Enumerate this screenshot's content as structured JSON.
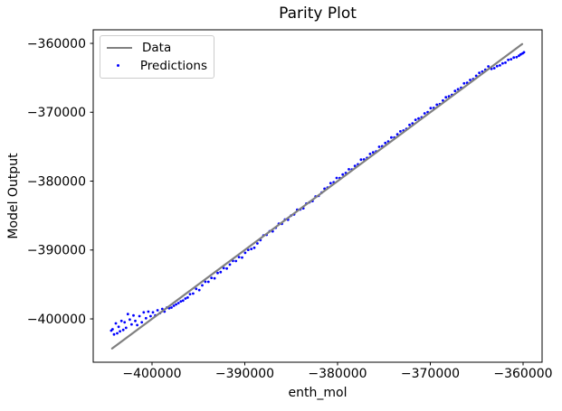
{
  "figure": {
    "title": "Parity Plot",
    "xlabel": "enth_mol",
    "ylabel": "Model Output"
  },
  "legend": {
    "items": [
      {
        "label": "Data",
        "type": "line",
        "color": "#808080"
      },
      {
        "label": "Predictions",
        "type": "marker",
        "color": "#0000ff"
      }
    ]
  },
  "chart_data": {
    "type": "scatter",
    "title": "Parity Plot",
    "xlabel": "enth_mol",
    "ylabel": "Model Output",
    "grid": false,
    "legend_position": "upper left",
    "xlim": [
      -406340,
      -357950
    ],
    "ylim": [
      -406290,
      -358030
    ],
    "x_ticks": [
      -400000,
      -390000,
      -380000,
      -370000,
      -360000
    ],
    "x_tick_labels": [
      "−400000",
      "−390000",
      "−380000",
      "−370000",
      "−360000"
    ],
    "y_ticks": [
      -360000,
      -370000,
      -380000,
      -390000,
      -400000
    ],
    "y_tick_labels": [
      "−360000",
      "−370000",
      "−380000",
      "−390000",
      "−400000"
    ],
    "series": [
      {
        "name": "Data",
        "type": "line",
        "color": "#808080",
        "line_width": 2.2,
        "points": [
          [
            -404300,
            -404300
          ],
          [
            -360100,
            -360100
          ]
        ]
      },
      {
        "name": "Predictions",
        "type": "scatter",
        "color": "#0000ff",
        "marker_size": 1.4,
        "points": [
          [
            -404400,
            -401700
          ],
          [
            -404250,
            -401500
          ],
          [
            -404100,
            -402250
          ],
          [
            -403900,
            -400650
          ],
          [
            -403750,
            -402100
          ],
          [
            -403600,
            -401150
          ],
          [
            -403450,
            -401800
          ],
          [
            -403300,
            -400300
          ],
          [
            -403100,
            -401600
          ],
          [
            -402950,
            -400500
          ],
          [
            -402800,
            -401300
          ],
          [
            -402600,
            -399300
          ],
          [
            -402400,
            -400100
          ],
          [
            -402200,
            -400800
          ],
          [
            -402000,
            -399500
          ],
          [
            -401800,
            -400300
          ],
          [
            -401600,
            -400900
          ],
          [
            -401350,
            -399600
          ],
          [
            -401100,
            -400500
          ],
          [
            -400900,
            -399050
          ],
          [
            -400650,
            -399900
          ],
          [
            -400400,
            -398950
          ],
          [
            -400150,
            -399600
          ],
          [
            -399900,
            -399050
          ],
          [
            -399650,
            -399500
          ],
          [
            -399400,
            -398750
          ],
          [
            -399150,
            -399150
          ],
          [
            -398900,
            -398550
          ],
          [
            -398650,
            -398950
          ],
          [
            -398400,
            -398350
          ],
          [
            -398150,
            -398450
          ],
          [
            -397900,
            -398350
          ],
          [
            -397650,
            -398100
          ],
          [
            -397400,
            -397900
          ],
          [
            -397150,
            -397700
          ],
          [
            -396900,
            -397450
          ],
          [
            -396650,
            -397350
          ],
          [
            -396400,
            -397050
          ],
          [
            -396150,
            -396900
          ],
          [
            -395900,
            -396400
          ],
          [
            -395570,
            -396320
          ],
          [
            -395240,
            -395640
          ],
          [
            -394910,
            -395810
          ],
          [
            -394580,
            -395130
          ],
          [
            -394250,
            -394600
          ],
          [
            -393920,
            -394620
          ],
          [
            -393590,
            -394040
          ],
          [
            -393260,
            -394110
          ],
          [
            -392930,
            -393330
          ],
          [
            -392600,
            -393200
          ],
          [
            -392270,
            -392620
          ],
          [
            -391940,
            -392690
          ],
          [
            -391610,
            -392110
          ],
          [
            -391280,
            -391580
          ],
          [
            -390950,
            -391600
          ],
          [
            -390620,
            -391020
          ],
          [
            -390290,
            -391090
          ],
          [
            -389960,
            -390410
          ],
          [
            -389630,
            -389980
          ],
          [
            -389300,
            -389850
          ],
          [
            -388970,
            -389670
          ],
          [
            -388640,
            -389040
          ],
          [
            -388310,
            -388560
          ],
          [
            -387980,
            -387880
          ],
          [
            -387650,
            -387800
          ],
          [
            -387320,
            -387270
          ],
          [
            -386990,
            -387290
          ],
          [
            -386660,
            -386760
          ],
          [
            -386330,
            -386180
          ],
          [
            -386000,
            -386200
          ],
          [
            -385670,
            -385570
          ],
          [
            -385340,
            -385590
          ],
          [
            -385010,
            -385010
          ],
          [
            -384680,
            -384830
          ],
          [
            -384350,
            -384150
          ],
          [
            -384020,
            -384120
          ],
          [
            -383690,
            -383940
          ],
          [
            -383360,
            -383260
          ],
          [
            -383030,
            -383080
          ],
          [
            -382700,
            -382900
          ],
          [
            -382370,
            -382220
          ],
          [
            -382040,
            -382140
          ],
          [
            -381710,
            -381660
          ],
          [
            -381400,
            -381100
          ],
          [
            -381073,
            -380923
          ],
          [
            -380746,
            -380296
          ],
          [
            -380419,
            -380169
          ],
          [
            -380092,
            -379542
          ],
          [
            -379765,
            -379565
          ],
          [
            -379438,
            -379038
          ],
          [
            -379111,
            -378811
          ],
          [
            -378784,
            -378284
          ],
          [
            -378457,
            -378307
          ],
          [
            -378130,
            -377780
          ],
          [
            -377803,
            -377553
          ],
          [
            -377476,
            -376876
          ],
          [
            -377149,
            -376849
          ],
          [
            -376822,
            -376622
          ],
          [
            -376495,
            -376045
          ],
          [
            -376168,
            -375818
          ],
          [
            -375841,
            -375691
          ],
          [
            -375514,
            -375014
          ],
          [
            -375187,
            -374937
          ],
          [
            -374860,
            -374460
          ],
          [
            -374533,
            -374233
          ],
          [
            -374206,
            -373656
          ],
          [
            -373879,
            -373679
          ],
          [
            -373552,
            -373202
          ],
          [
            -373225,
            -372775
          ],
          [
            -372898,
            -372648
          ],
          [
            -372571,
            -372421
          ],
          [
            -372244,
            -371844
          ],
          [
            -371917,
            -371617
          ],
          [
            -371590,
            -371090
          ],
          [
            -371263,
            -370913
          ],
          [
            -370936,
            -370736
          ],
          [
            -370609,
            -370159
          ],
          [
            -370282,
            -369982
          ],
          [
            -369955,
            -369405
          ],
          [
            -369628,
            -369378
          ],
          [
            -369301,
            -368901
          ],
          [
            -368974,
            -368824
          ],
          [
            -368647,
            -368297
          ],
          [
            -368320,
            -367820
          ],
          [
            -367993,
            -367693
          ],
          [
            -367666,
            -367466
          ],
          [
            -367339,
            -366889
          ],
          [
            -367012,
            -366662
          ],
          [
            -366685,
            -366435
          ],
          [
            -366358,
            -365808
          ],
          [
            -366031,
            -365731
          ],
          [
            -365704,
            -365304
          ],
          [
            -365377,
            -365177
          ],
          [
            -365050,
            -364700
          ],
          [
            -364723,
            -364273
          ],
          [
            -364396,
            -364096
          ],
          [
            -364069,
            -363819
          ],
          [
            -363742,
            -363342
          ],
          [
            -363400,
            -363700
          ],
          [
            -363100,
            -363600
          ],
          [
            -362800,
            -363300
          ],
          [
            -362500,
            -363200
          ],
          [
            -362200,
            -362900
          ],
          [
            -361900,
            -362800
          ],
          [
            -361600,
            -362400
          ],
          [
            -361300,
            -362300
          ],
          [
            -361000,
            -362050
          ],
          [
            -360700,
            -362000
          ],
          [
            -360450,
            -361800
          ],
          [
            -360250,
            -361600
          ],
          [
            -360050,
            -361450
          ],
          [
            -359900,
            -361300
          ]
        ]
      }
    ]
  }
}
